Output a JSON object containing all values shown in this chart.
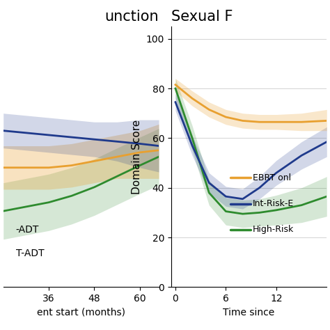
{
  "left_panel": {
    "title": "unction",
    "ylabel": "",
    "xlabel": "ent start (months)",
    "xticks": [
      36,
      48,
      60
    ],
    "yticks": [],
    "ylim": [
      88,
      100
    ],
    "xlim": [
      24,
      65
    ],
    "lines": {
      "ebrt": {
        "x": [
          24,
          30,
          36,
          42,
          48,
          54,
          60,
          65
        ],
        "y": [
          93.5,
          93.5,
          93.5,
          93.6,
          93.8,
          94.0,
          94.2,
          94.3
        ],
        "ci_low": [
          92.5,
          92.5,
          92.5,
          92.6,
          92.8,
          93.0,
          93.0,
          93.0
        ],
        "ci_high": [
          94.5,
          94.5,
          94.5,
          94.6,
          94.8,
          95.0,
          95.2,
          95.5
        ],
        "color": "#E8A030",
        "alpha": 0.3
      },
      "int_risk": {
        "x": [
          24,
          30,
          36,
          42,
          48,
          54,
          60,
          65
        ],
        "y": [
          95.2,
          95.1,
          95.0,
          94.9,
          94.8,
          94.7,
          94.6,
          94.5
        ],
        "ci_low": [
          94.4,
          94.3,
          94.2,
          94.1,
          94.0,
          93.8,
          93.5,
          93.3
        ],
        "ci_high": [
          96.0,
          95.9,
          95.8,
          95.7,
          95.6,
          95.6,
          95.7,
          95.7
        ],
        "color": "#1F3A8C",
        "alpha": 0.2
      },
      "high_risk": {
        "x": [
          24,
          30,
          36,
          42,
          48,
          54,
          60,
          65
        ],
        "y": [
          91.5,
          91.7,
          91.9,
          92.2,
          92.6,
          93.1,
          93.6,
          94.0
        ],
        "ci_low": [
          90.2,
          90.4,
          90.6,
          90.9,
          91.3,
          91.8,
          92.3,
          92.7
        ],
        "ci_high": [
          92.8,
          93.0,
          93.2,
          93.5,
          93.9,
          94.4,
          94.9,
          95.3
        ],
        "color": "#2E8B2E",
        "alpha": 0.2
      }
    },
    "legend_labels": [
      "-ADT",
      "T-ADT"
    ],
    "legend_colors": [
      "#E8A030",
      "#2E8B2E"
    ]
  },
  "right_panel": {
    "title": "Sexual F",
    "ylabel": "Domain Score",
    "xlabel": "Time since",
    "xticks": [
      0,
      6,
      12
    ],
    "yticks": [
      0,
      20,
      40,
      60,
      80,
      100
    ],
    "ylim": [
      0,
      105
    ],
    "xlim": [
      -0.5,
      18
    ],
    "lines": {
      "ebrt": {
        "x": [
          0,
          2,
          4,
          6,
          8,
          10,
          12,
          15,
          18
        ],
        "y": [
          81.5,
          76.0,
          71.5,
          68.5,
          67.0,
          66.5,
          66.5,
          66.5,
          67.0
        ],
        "ci_low": [
          79.0,
          73.0,
          68.5,
          65.5,
          64.0,
          63.5,
          63.5,
          63.0,
          63.0
        ],
        "ci_high": [
          84.0,
          79.0,
          74.5,
          71.5,
          70.0,
          69.5,
          69.5,
          70.0,
          71.5
        ],
        "color": "#E8A030",
        "alpha": 0.25
      },
      "int_risk": {
        "x": [
          0,
          2,
          4,
          6,
          8,
          10,
          12,
          15,
          18
        ],
        "y": [
          74.5,
          57.0,
          42.0,
          36.5,
          35.5,
          40.0,
          46.0,
          53.0,
          58.5
        ],
        "ci_low": [
          71.0,
          53.0,
          38.0,
          32.5,
          31.5,
          35.5,
          41.0,
          47.5,
          52.5
        ],
        "ci_high": [
          78.0,
          61.0,
          46.0,
          40.5,
          39.5,
          44.5,
          51.0,
          58.5,
          64.5
        ],
        "color": "#1F3A8C",
        "alpha": 0.2
      },
      "high_risk": {
        "x": [
          0,
          2,
          4,
          6,
          8,
          10,
          12,
          15,
          18
        ],
        "y": [
          80.0,
          60.0,
          38.0,
          30.5,
          29.5,
          30.0,
          31.0,
          33.0,
          36.5
        ],
        "ci_low": [
          76.0,
          55.0,
          33.0,
          25.0,
          24.0,
          24.5,
          25.0,
          26.0,
          28.5
        ],
        "ci_high": [
          84.0,
          65.0,
          43.0,
          36.0,
          35.0,
          35.5,
          37.0,
          40.0,
          44.5
        ],
        "color": "#2E8B2E",
        "alpha": 0.2
      }
    },
    "legend_labels": [
      "EBRT onl",
      "Int-Risk-E",
      "High-Risk"
    ],
    "legend_colors": [
      "#E8A030",
      "#1F3A8C",
      "#2E8B2E"
    ]
  },
  "fig_width": 4.74,
  "fig_height": 4.74,
  "dpi": 100
}
